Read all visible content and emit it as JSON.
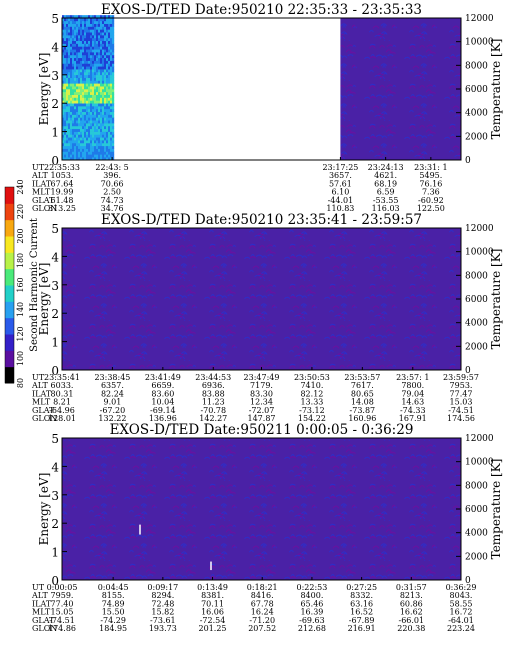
{
  "colorbar": {
    "label": "Second Harmonic Current",
    "ticks": [
      "80",
      "100",
      "120",
      "140",
      "160",
      "180",
      "200",
      "220",
      "240"
    ]
  },
  "chart_data": [
    {
      "type": "heatmap",
      "title": "EXOS-D/TED   Date:950210  22:35:33 - 23:35:33",
      "ylabel": "Energy [eV]",
      "ylim": [
        0,
        5
      ],
      "yticks": [
        "0",
        "1",
        "2",
        "3",
        "4",
        "5"
      ],
      "ylabel_right": "Temperature [K]",
      "yticks_right": [
        "0",
        "2000",
        "4000",
        "6000",
        "8000",
        "10000",
        "12000"
      ],
      "data_gap": "22:43:5 - 23:17:25",
      "row_labels": [
        "UT",
        "ALT",
        "ILAT",
        "MLT",
        "GLAT",
        "GLON"
      ],
      "columns": [
        [
          "22:35:33",
          "1053.",
          "67.64",
          "19.99",
          "61.48",
          "313.25"
        ],
        [
          "22:43: 5",
          "396.",
          "70.66",
          "2.50",
          "74.73",
          "34.76"
        ],
        [
          "23:17:25",
          "3657.",
          "57.61",
          "6.10",
          "-44.01",
          "110.83"
        ],
        [
          "23:24:13",
          "4621.",
          "68.19",
          "6.59",
          "-53.55",
          "116.03"
        ],
        [
          "23:31: 1",
          "5495.",
          "76.16",
          "7.36",
          "-60.92",
          "122.50"
        ]
      ]
    },
    {
      "type": "heatmap",
      "title": "EXOS-D/TED   Date:950210  23:35:41 - 23:59:57",
      "ylabel": "Energy [eV]",
      "ylim": [
        0,
        5
      ],
      "yticks": [
        "0",
        "1",
        "2",
        "3",
        "4",
        "5"
      ],
      "ylabel_right": "Temperature [K]",
      "yticks_right": [
        "0",
        "2000",
        "4000",
        "6000",
        "8000",
        "10000",
        "12000"
      ],
      "row_labels": [
        "UT",
        "ALT",
        "ILAT",
        "MLT",
        "GLAT",
        "GLON"
      ],
      "columns": [
        [
          "23:35:41",
          "6033.",
          "80.31",
          "8.21",
          "-64.96",
          "128.01"
        ],
        [
          "23:38:45",
          "6357.",
          "82.24",
          "9.01",
          "-67.20",
          "132.22"
        ],
        [
          "23:41:49",
          "6659.",
          "83.60",
          "10.04",
          "-69.14",
          "136.96"
        ],
        [
          "23:44:53",
          "6936.",
          "83.88",
          "11.23",
          "-70.78",
          "142.27"
        ],
        [
          "23:47:49",
          "7179.",
          "83.30",
          "12.34",
          "-72.07",
          "147.87"
        ],
        [
          "23:50:53",
          "7410.",
          "82.12",
          "13.33",
          "-73.12",
          "154.22"
        ],
        [
          "23:53:57",
          "7617.",
          "80.65",
          "14.08",
          "-73.87",
          "160.96"
        ],
        [
          "23:57: 1",
          "7800.",
          "79.04",
          "14.63",
          "-74.33",
          "167.91"
        ],
        [
          "23:59:57",
          "7953.",
          "77.47",
          "15.03",
          "-74.51",
          "174.56"
        ]
      ]
    },
    {
      "type": "heatmap",
      "title": "EXOS-D/TED   Date:950211   0:00:05 - 0:36:29",
      "ylabel": "Energy [eV]",
      "ylim": [
        0,
        5
      ],
      "yticks": [
        "0",
        "1",
        "2",
        "3",
        "4",
        "5"
      ],
      "ylabel_right": "Temperature [K]",
      "yticks_right": [
        "0",
        "2000",
        "4000",
        "6000",
        "8000",
        "10000",
        "12000"
      ],
      "row_labels": [
        "UT",
        "ALT",
        "ILAT",
        "MLT",
        "GLAT",
        "GLON"
      ],
      "columns": [
        [
          "0:00:05",
          "7959.",
          "77.40",
          "15.05",
          "-74.51",
          "174.86"
        ],
        [
          "0:04:45",
          "8155.",
          "74.89",
          "15.50",
          "-74.29",
          "184.95"
        ],
        [
          "0:09:17",
          "8294.",
          "72.48",
          "15.82",
          "-73.61",
          "193.73"
        ],
        [
          "0:13:49",
          "8381.",
          "70.11",
          "16.06",
          "-72.54",
          "201.25"
        ],
        [
          "0:18:21",
          "8416.",
          "67.78",
          "16.24",
          "-71.20",
          "207.52"
        ],
        [
          "0:22:53",
          "8400.",
          "65.46",
          "16.39",
          "-69.63",
          "212.68"
        ],
        [
          "0:27:25",
          "8332.",
          "63.16",
          "16.52",
          "-67.89",
          "216.91"
        ],
        [
          "0:31:57",
          "8213.",
          "60.86",
          "16.62",
          "-66.01",
          "220.38"
        ],
        [
          "0:36:29",
          "8043.",
          "58.55",
          "16.72",
          "-64.01",
          "223.24"
        ]
      ]
    }
  ]
}
